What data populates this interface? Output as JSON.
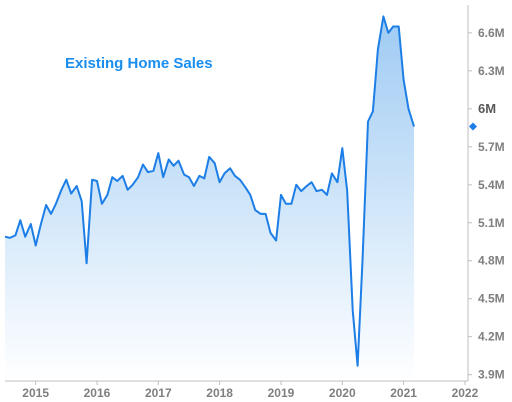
{
  "chart_data": {
    "type": "area",
    "title": "Existing Home Sales",
    "xlabel": "",
    "ylabel": "",
    "xlim": [
      2014.5,
      2022.05
    ],
    "ylim": [
      3.85,
      6.82
    ],
    "x_ticks": [
      {
        "value": 2015,
        "label": "2015"
      },
      {
        "value": 2016,
        "label": "2016"
      },
      {
        "value": 2017,
        "label": "2017"
      },
      {
        "value": 2018,
        "label": "2018"
      },
      {
        "value": 2019,
        "label": "2019"
      },
      {
        "value": 2020,
        "label": "2020"
      },
      {
        "value": 2021,
        "label": "2021"
      },
      {
        "value": 2022,
        "label": "2022"
      }
    ],
    "y_ticks": [
      {
        "value": 3.9,
        "label": "3.9M"
      },
      {
        "value": 4.2,
        "label": "4.2M"
      },
      {
        "value": 4.5,
        "label": "4.5M"
      },
      {
        "value": 4.8,
        "label": "4.8M"
      },
      {
        "value": 5.1,
        "label": "5.1M"
      },
      {
        "value": 5.4,
        "label": "5.4M"
      },
      {
        "value": 5.7,
        "label": "5.7M"
      },
      {
        "value": 6.3,
        "label": "6.3M"
      },
      {
        "value": 6.6,
        "label": "6.6M"
      }
    ],
    "highlight": {
      "value": 6.0,
      "label": "6M"
    },
    "last_value_marker": 5.86,
    "grid": false,
    "line_color": "#1c7ee6",
    "title_color": "#1a8ef0",
    "fill_top_color": "#9fcbf3",
    "fill_bottom_color": "#ffffff",
    "series": [
      {
        "values": [
          [
            2014.5,
            4.99
          ],
          [
            2014.58,
            4.98
          ],
          [
            2014.67,
            5.0
          ],
          [
            2014.75,
            5.12
          ],
          [
            2014.83,
            4.99
          ],
          [
            2014.92,
            5.09
          ],
          [
            2015.0,
            4.92
          ],
          [
            2015.08,
            5.08
          ],
          [
            2015.17,
            5.24
          ],
          [
            2015.25,
            5.17
          ],
          [
            2015.33,
            5.25
          ],
          [
            2015.42,
            5.36
          ],
          [
            2015.5,
            5.44
          ],
          [
            2015.58,
            5.33
          ],
          [
            2015.67,
            5.39
          ],
          [
            2015.75,
            5.27
          ],
          [
            2015.83,
            4.78
          ],
          [
            2015.92,
            5.44
          ],
          [
            2016.0,
            5.43
          ],
          [
            2016.08,
            5.25
          ],
          [
            2016.17,
            5.32
          ],
          [
            2016.25,
            5.46
          ],
          [
            2016.33,
            5.43
          ],
          [
            2016.42,
            5.47
          ],
          [
            2016.5,
            5.36
          ],
          [
            2016.58,
            5.4
          ],
          [
            2016.67,
            5.46
          ],
          [
            2016.75,
            5.56
          ],
          [
            2016.83,
            5.5
          ],
          [
            2016.92,
            5.51
          ],
          [
            2017.0,
            5.65
          ],
          [
            2017.08,
            5.46
          ],
          [
            2017.17,
            5.6
          ],
          [
            2017.25,
            5.55
          ],
          [
            2017.33,
            5.59
          ],
          [
            2017.42,
            5.48
          ],
          [
            2017.5,
            5.46
          ],
          [
            2017.58,
            5.39
          ],
          [
            2017.67,
            5.47
          ],
          [
            2017.75,
            5.45
          ],
          [
            2017.83,
            5.62
          ],
          [
            2017.92,
            5.57
          ],
          [
            2018.0,
            5.42
          ],
          [
            2018.08,
            5.49
          ],
          [
            2018.17,
            5.53
          ],
          [
            2018.25,
            5.47
          ],
          [
            2018.33,
            5.44
          ],
          [
            2018.42,
            5.38
          ],
          [
            2018.5,
            5.32
          ],
          [
            2018.58,
            5.2
          ],
          [
            2018.67,
            5.17
          ],
          [
            2018.75,
            5.17
          ],
          [
            2018.83,
            5.02
          ],
          [
            2018.92,
            4.96
          ],
          [
            2019.0,
            5.32
          ],
          [
            2019.08,
            5.25
          ],
          [
            2019.17,
            5.25
          ],
          [
            2019.25,
            5.4
          ],
          [
            2019.33,
            5.35
          ],
          [
            2019.42,
            5.39
          ],
          [
            2019.5,
            5.42
          ],
          [
            2019.58,
            5.35
          ],
          [
            2019.67,
            5.36
          ],
          [
            2019.75,
            5.32
          ],
          [
            2019.83,
            5.49
          ],
          [
            2019.92,
            5.42
          ],
          [
            2020.0,
            5.69
          ],
          [
            2020.08,
            5.35
          ],
          [
            2020.17,
            4.41
          ],
          [
            2020.25,
            3.97
          ],
          [
            2020.33,
            4.8
          ],
          [
            2020.42,
            5.9
          ],
          [
            2020.5,
            5.98
          ],
          [
            2020.58,
            6.47
          ],
          [
            2020.67,
            6.73
          ],
          [
            2020.75,
            6.6
          ],
          [
            2020.83,
            6.65
          ],
          [
            2020.92,
            6.65
          ],
          [
            2021.0,
            6.23
          ],
          [
            2021.08,
            6.0
          ],
          [
            2021.17,
            5.86
          ]
        ]
      }
    ]
  }
}
